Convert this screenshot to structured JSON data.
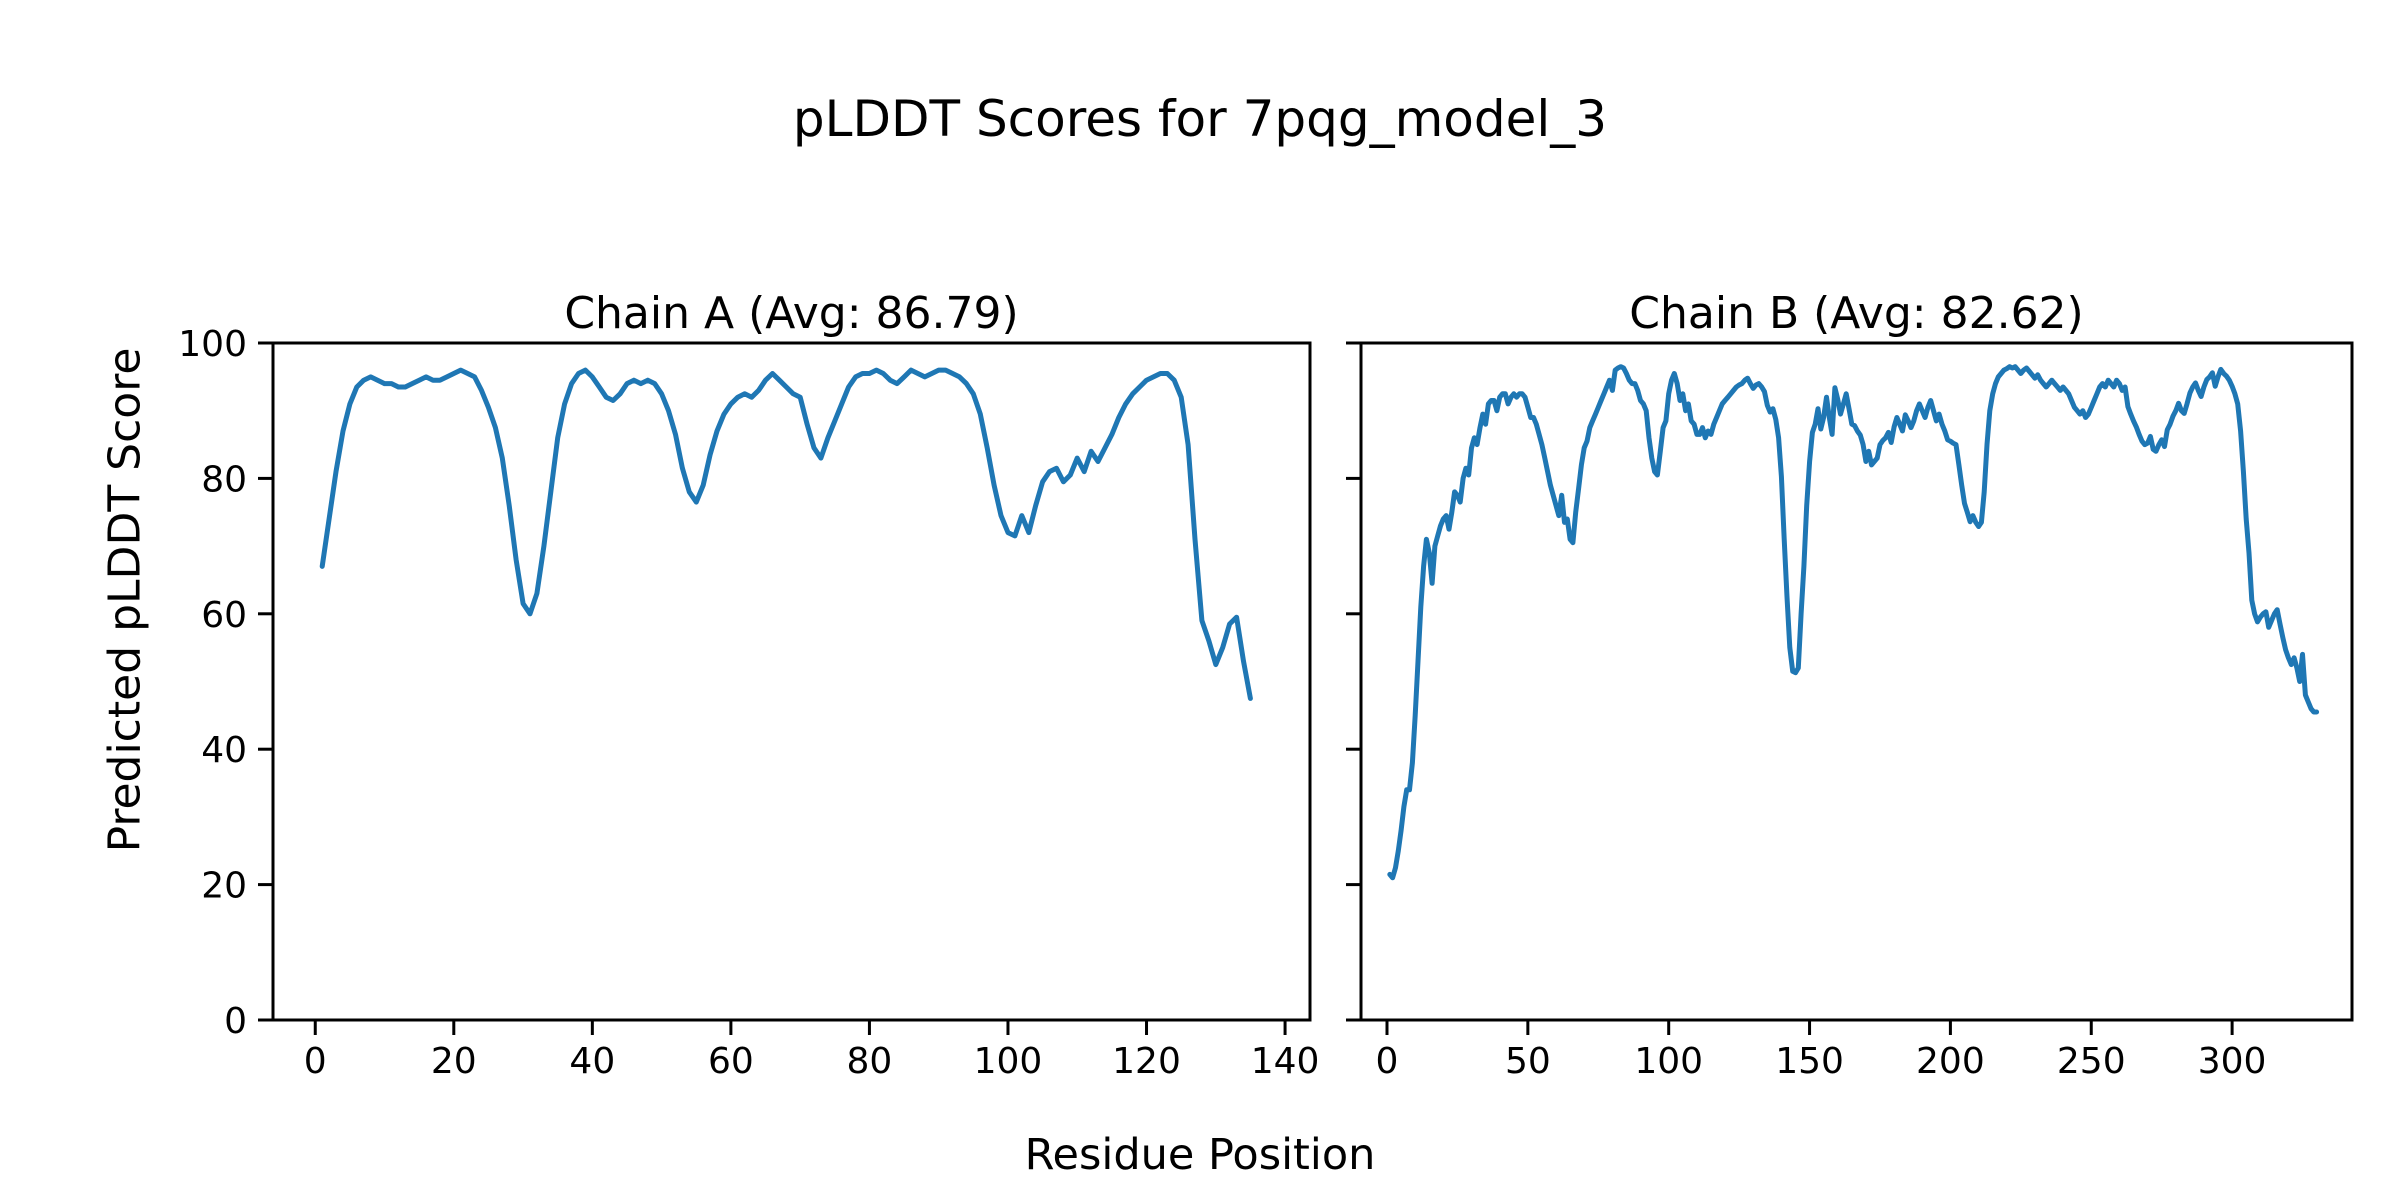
{
  "figure": {
    "title": "pLDDT Scores for 7pqg_model_3",
    "xlabel": "Residue Position",
    "ylabel": "Predicted pLDDT Score",
    "line_color": "#1f77b4",
    "text_color": "#000000",
    "background_color": "#ffffff"
  },
  "chart_data": [
    {
      "type": "line",
      "title": "Chain A (Avg: 86.79)",
      "chain": "A",
      "average_plddt": 86.79,
      "legend": "none",
      "grid": false,
      "xlim": [
        -6.1,
        143.6
      ],
      "ylim": [
        0,
        100
      ],
      "xticks": [
        0,
        20,
        40,
        60,
        80,
        100,
        120,
        140
      ],
      "yticks": [
        0,
        20,
        40,
        60,
        80,
        100
      ],
      "yticklabels_visible": true,
      "x_start": 1,
      "values": [
        67,
        74,
        81,
        87,
        91,
        93.5,
        94.5,
        95,
        94.5,
        94,
        94,
        93.5,
        93.5,
        94,
        94.5,
        95,
        94.5,
        94.5,
        95,
        95.5,
        96,
        95.5,
        95,
        93,
        90.5,
        87.5,
        83,
        76,
        68,
        61.5,
        60,
        63,
        70,
        78,
        86,
        91,
        94,
        95.5,
        96,
        95,
        93.5,
        92,
        91.5,
        92.5,
        94,
        94.5,
        94,
        94.5,
        94,
        92.5,
        90,
        86.5,
        81.5,
        78,
        76.5,
        79,
        83.5,
        87,
        89.5,
        91,
        92,
        92.5,
        92,
        93,
        94.5,
        95.5,
        94.5,
        93.5,
        92.5,
        92,
        88,
        84.5,
        83,
        86,
        88.5,
        91,
        93.5,
        95,
        95.5,
        95.5,
        96,
        95.5,
        94.5,
        94,
        95,
        96,
        95.5,
        95,
        95.5,
        96,
        96,
        95.5,
        95,
        94,
        92.5,
        89.5,
        84.5,
        79,
        74.5,
        72,
        71.5,
        74.5,
        72,
        76,
        79.5,
        81,
        81.5,
        79.5,
        80.5,
        83,
        81,
        84,
        82.5,
        84.5,
        86.5,
        89,
        91,
        92.5,
        93.5,
        94.5,
        95,
        95.5,
        95.5,
        94.5,
        92,
        85,
        71,
        59,
        56,
        52.5,
        55,
        58.5,
        59.5,
        53,
        47.5
      ]
    },
    {
      "type": "line",
      "title": "Chain B (Avg: 82.62)",
      "chain": "B",
      "average_plddt": 82.62,
      "legend": "none",
      "grid": false,
      "xlim": [
        -9.23,
        342.56
      ],
      "ylim": [
        0,
        100
      ],
      "xticks": [
        0,
        50,
        100,
        150,
        200,
        250,
        300
      ],
      "yticks": [
        0,
        20,
        40,
        60,
        80,
        100
      ],
      "yticklabels_visible": false,
      "x_start": 1,
      "values": [
        21.5,
        21,
        22.5,
        25,
        28,
        31.5,
        34,
        34,
        38,
        45,
        53,
        61,
        67,
        71,
        69,
        64.5,
        70,
        71.5,
        73,
        74,
        74.5,
        72.5,
        75,
        78,
        77.5,
        76.5,
        80,
        81.5,
        80.5,
        84.5,
        86,
        85,
        87.5,
        89.5,
        88,
        91,
        91.5,
        91.5,
        90,
        92,
        92.5,
        92.5,
        91,
        92,
        92.5,
        92,
        92.5,
        92.5,
        92,
        90.5,
        89,
        89,
        88,
        86.5,
        85,
        83,
        81,
        79,
        77.5,
        76,
        74.5,
        77.5,
        73.5,
        74,
        71,
        70.5,
        75,
        78.5,
        82,
        84.5,
        85.5,
        87.5,
        88.5,
        89.5,
        90.5,
        91.5,
        92.5,
        93.5,
        94.5,
        93,
        96,
        96.3,
        96.5,
        96.3,
        95.5,
        94.5,
        94,
        94,
        93,
        91.5,
        91,
        90,
        86,
        83,
        81,
        80.5,
        84,
        87.5,
        88.5,
        92.5,
        94.5,
        95.5,
        94,
        91.5,
        92.5,
        90,
        91,
        88.5,
        88,
        86.5,
        86.5,
        87.5,
        86,
        87,
        86.5,
        88,
        89,
        90,
        91,
        91.5,
        92,
        92.5,
        93,
        93.5,
        93.8,
        94,
        94.5,
        94.8,
        94,
        93.3,
        93.8,
        94,
        93.5,
        92.8,
        90.8,
        89.8,
        90.3,
        88.7,
        86,
        80.3,
        71,
        62.5,
        55,
        51.5,
        51.3,
        52,
        60,
        67,
        76,
        82.5,
        86.8,
        88,
        90.3,
        87.3,
        89,
        92,
        89,
        86.5,
        93.4,
        91.7,
        89.5,
        91,
        92.5,
        90.3,
        88,
        87.8,
        87,
        86.4,
        85,
        82.5,
        84,
        82,
        82.5,
        83,
        85,
        85.6,
        86,
        86.8,
        85.3,
        87.6,
        89,
        88,
        87,
        89.4,
        88.5,
        87.5,
        88.5,
        90,
        91,
        90,
        89,
        90.5,
        91.5,
        90,
        88.5,
        89.5,
        88,
        87,
        85.7,
        85.5,
        85.2,
        85,
        82,
        79,
        76.3,
        75,
        73.6,
        74.5,
        73.5,
        72.9,
        73.5,
        78,
        85,
        90,
        92.5,
        94,
        95,
        95.5,
        96,
        96.2,
        96.5,
        96.3,
        96.5,
        96,
        95.5,
        96,
        96.3,
        95.8,
        95.3,
        94.8,
        95.3,
        94.5,
        94,
        93.5,
        94,
        94.5,
        94,
        93.5,
        93,
        93.5,
        93,
        92.5,
        91.5,
        90.5,
        90,
        89.5,
        90,
        89,
        89.5,
        90.5,
        91.5,
        92.5,
        93.5,
        94,
        93.5,
        94.5,
        94,
        93.5,
        94.5,
        94,
        93,
        93.5,
        90.6,
        89.5,
        88.5,
        87.6,
        86.5,
        85.5,
        85,
        85.2,
        86.2,
        84.3,
        84,
        85,
        85.7,
        84.7,
        87.2,
        88,
        89.2,
        90,
        91.1,
        90,
        89.6,
        91,
        92.6,
        93.5,
        94.1,
        93,
        92.1,
        93.5,
        94.6,
        95,
        95.6,
        93.6,
        95,
        96.1,
        95.5,
        95.1,
        94.5,
        93.6,
        92.5,
        91,
        87,
        81,
        74,
        69,
        62,
        60,
        58.8,
        59.5,
        60,
        60.3,
        58,
        59,
        60,
        60.6,
        58.5,
        56.5,
        54.7,
        53.5,
        52.5,
        53.5,
        52,
        50,
        54,
        48,
        47,
        46,
        45.5,
        45.5
      ]
    }
  ]
}
